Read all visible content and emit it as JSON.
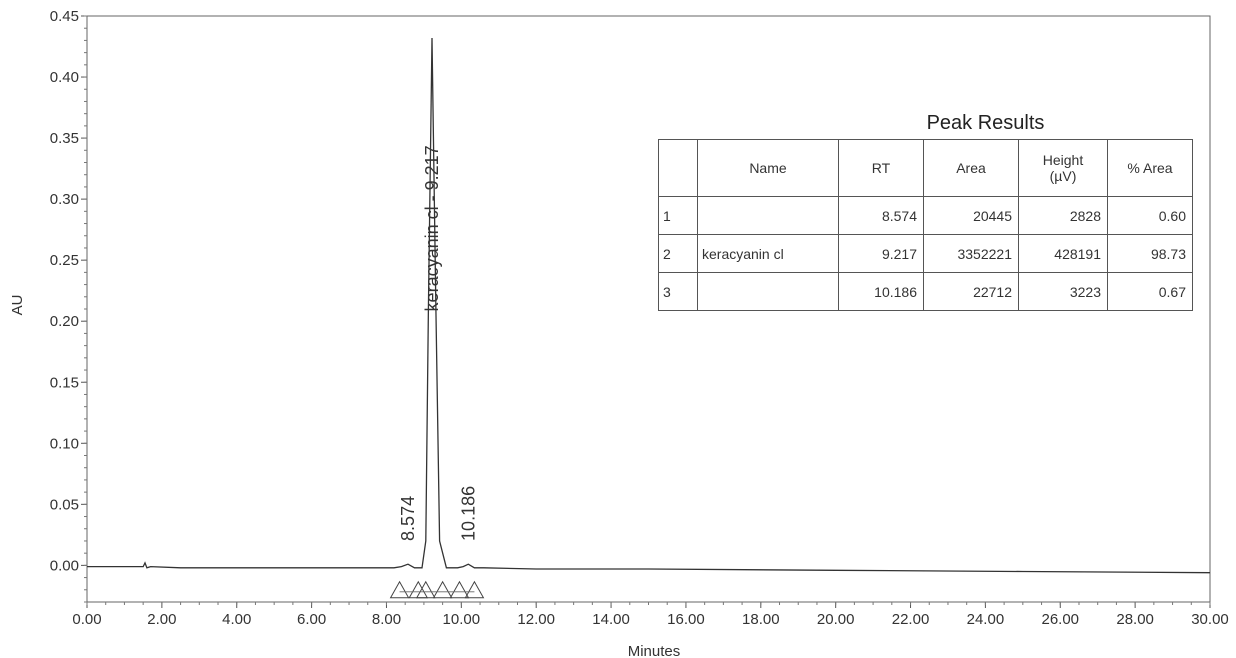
{
  "chart_data": {
    "type": "line",
    "xlabel": "Minutes",
    "ylabel": "AU",
    "xlim": [
      0,
      30
    ],
    "ylim": [
      -0.03,
      0.45
    ],
    "x_ticks": [
      "0.00",
      "2.00",
      "4.00",
      "6.00",
      "8.00",
      "10.00",
      "12.00",
      "14.00",
      "16.00",
      "18.00",
      "20.00",
      "22.00",
      "24.00",
      "26.00",
      "28.00",
      "30.00"
    ],
    "y_ticks": [
      "0.00",
      "0.05",
      "0.10",
      "0.15",
      "0.20",
      "0.25",
      "0.30",
      "0.35",
      "0.40",
      "0.45"
    ],
    "series": [
      {
        "x": [
          0,
          1.5,
          1.55,
          1.6,
          1.7,
          2.5,
          5,
          7,
          8.2,
          8.4,
          8.574,
          8.75,
          8.95,
          9.05,
          9.12,
          9.217,
          9.32,
          9.42,
          9.6,
          9.9,
          10.05,
          10.186,
          10.35,
          10.6,
          12,
          15,
          20,
          25,
          30
        ],
        "y": [
          -0.001,
          -0.001,
          0.002,
          -0.002,
          -0.001,
          -0.002,
          -0.002,
          -0.002,
          -0.002,
          -0.001,
          0.001,
          -0.002,
          -0.002,
          0.02,
          0.21,
          0.432,
          0.21,
          0.02,
          -0.002,
          -0.002,
          -0.001,
          0.001,
          -0.002,
          -0.002,
          -0.003,
          -0.003,
          -0.004,
          -0.005,
          -0.006
        ]
      }
    ],
    "peak_labels": [
      {
        "rt": 8.574,
        "text": "8.574"
      },
      {
        "rt": 9.217,
        "text": "keracyanin cl - 9.217"
      },
      {
        "rt": 10.186,
        "text": "10.186"
      }
    ],
    "table": {
      "title": "Peak Results",
      "headers": [
        "",
        "Name",
        "RT",
        "Area",
        "Height\n(µV)",
        "% Area"
      ],
      "rows": [
        [
          "1",
          "",
          "8.574",
          "20445",
          "2828",
          "0.60"
        ],
        [
          "2",
          "keracyanin cl",
          "9.217",
          "3352221",
          "428191",
          "98.73"
        ],
        [
          "3",
          "",
          "10.186",
          "22712",
          "3223",
          "0.67"
        ]
      ]
    }
  }
}
